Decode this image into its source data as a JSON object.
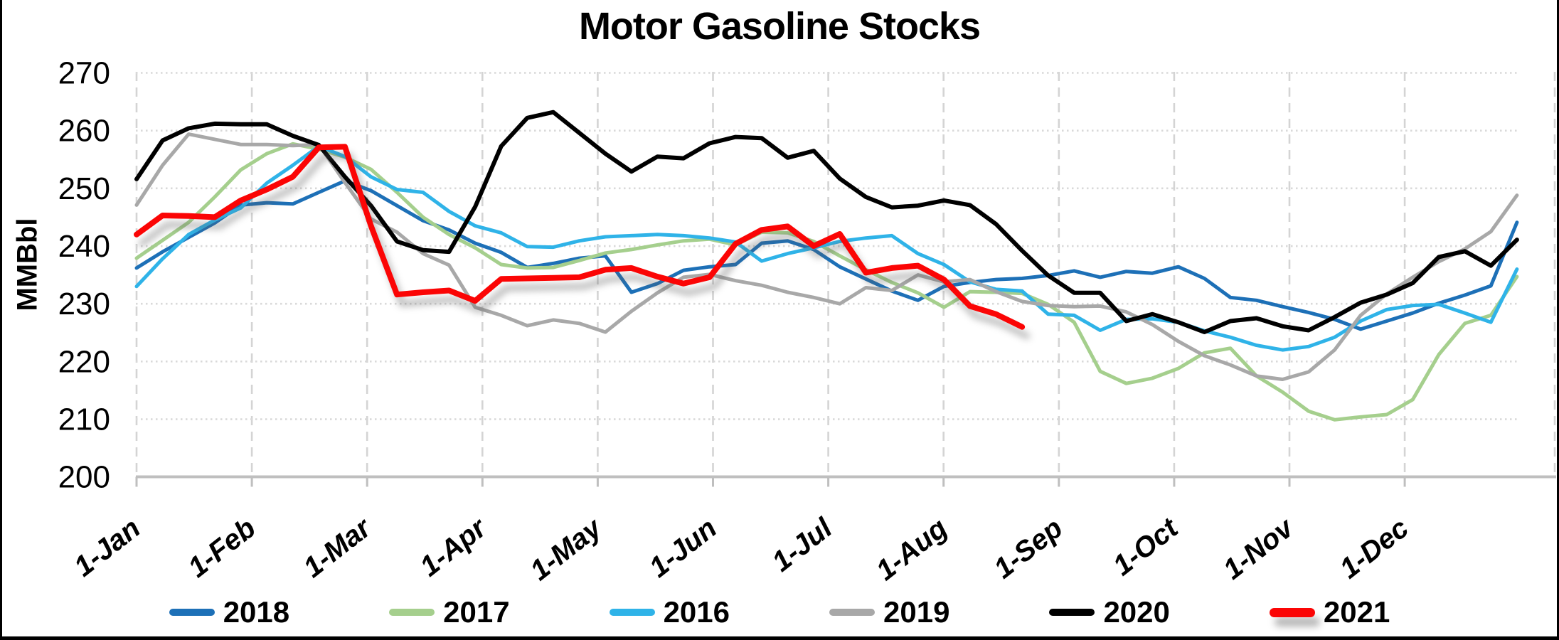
{
  "title": "Motor Gasoline Stocks",
  "chart_data": {
    "type": "line",
    "title": "Motor Gasoline Stocks",
    "xlabel": "",
    "ylabel": "MMBbl",
    "ylim": [
      200,
      270
    ],
    "y_ticks": [
      200,
      210,
      220,
      230,
      240,
      250,
      260,
      270
    ],
    "x_tick_labels": [
      "1-Jan",
      "1-Feb",
      "1-Mar",
      "1-Apr",
      "1-May",
      "1-Jun",
      "1-Jul",
      "1-Aug",
      "1-Sep",
      "1-Oct",
      "1-Nov",
      "1-Dec"
    ],
    "x_unit": "weekly data points, one point per week starting 1-Jan",
    "grid": "both",
    "legend_position": "bottom",
    "series": [
      {
        "name": "2018",
        "color": "#1D70B7",
        "line_width": 5,
        "shadow": false,
        "values": [
          236.2,
          239.0,
          241.5,
          244.0,
          247.1,
          247.5,
          247.3,
          249.3,
          251.3,
          249.6,
          247.0,
          244.4,
          242.8,
          240.5,
          238.9,
          236.3,
          237.0,
          237.9,
          238.3,
          232.0,
          233.5,
          235.8,
          236.4,
          236.8,
          240.5,
          240.9,
          239.4,
          236.4,
          234.3,
          232.2,
          230.6,
          233.0,
          233.7,
          234.2,
          234.4,
          234.9,
          235.7,
          234.6,
          235.6,
          235.3,
          236.4,
          234.4,
          231.1,
          230.6,
          229.5,
          228.5,
          227.3,
          225.6,
          227.0,
          228.4,
          230.1,
          231.5,
          233.1,
          244.1
        ]
      },
      {
        "name": "2017",
        "color": "#A5CF8D",
        "line_width": 5,
        "shadow": false,
        "values": [
          237.9,
          241.0,
          244.1,
          248.5,
          253.2,
          256.0,
          257.7,
          256.8,
          255.4,
          253.3,
          249.3,
          245.0,
          242.0,
          239.7,
          236.8,
          236.2,
          236.3,
          237.5,
          238.8,
          239.4,
          240.2,
          240.9,
          241.2,
          240.2,
          242.4,
          242.3,
          240.8,
          238.3,
          235.9,
          233.7,
          231.9,
          229.4,
          232.1,
          232.0,
          231.8,
          229.9,
          226.8,
          218.3,
          216.2,
          217.1,
          218.8,
          221.5,
          222.3,
          217.5,
          214.7,
          211.4,
          209.9,
          210.4,
          210.8,
          213.4,
          221.2,
          226.6,
          228.0,
          234.7
        ]
      },
      {
        "name": "2016",
        "color": "#2FB3E8",
        "line_width": 5,
        "shadow": false,
        "values": [
          233.0,
          237.8,
          242.0,
          244.5,
          246.6,
          250.9,
          254.0,
          257.3,
          255.5,
          252.0,
          249.8,
          249.3,
          246.0,
          243.5,
          242.3,
          239.9,
          239.8,
          240.9,
          241.6,
          241.8,
          242.0,
          241.8,
          241.4,
          240.7,
          237.4,
          238.7,
          239.7,
          240.8,
          241.4,
          241.8,
          238.7,
          236.8,
          233.8,
          232.5,
          232.2,
          228.2,
          228.0,
          225.4,
          227.3,
          227.4,
          226.8,
          225.3,
          224.2,
          222.8,
          222.0,
          222.6,
          224.2,
          227.0,
          229.0,
          229.7,
          229.9,
          228.4,
          226.8,
          236.0
        ]
      },
      {
        "name": "2019",
        "color": "#A8A8A8",
        "line_width": 5,
        "shadow": false,
        "values": [
          247.1,
          254.0,
          259.4,
          258.5,
          257.6,
          257.6,
          257.4,
          257.6,
          251.0,
          244.7,
          242.4,
          238.7,
          236.7,
          229.4,
          228.0,
          226.2,
          227.2,
          226.6,
          225.1,
          228.7,
          231.9,
          234.6,
          235.1,
          234.0,
          233.2,
          232.0,
          231.1,
          230.0,
          232.8,
          232.3,
          235.0,
          233.8,
          234.2,
          232.1,
          230.4,
          229.7,
          229.5,
          229.6,
          228.6,
          226.4,
          223.5,
          221.0,
          219.4,
          217.5,
          216.9,
          218.2,
          222.0,
          228.0,
          231.7,
          234.6,
          237.3,
          239.5,
          242.5,
          248.8
        ]
      },
      {
        "name": "2020",
        "color": "#000000",
        "line_width": 6,
        "shadow": false,
        "values": [
          251.6,
          258.3,
          260.4,
          261.2,
          261.1,
          261.1,
          259.1,
          257.5,
          252.0,
          247.0,
          240.8,
          239.3,
          239.0,
          246.8,
          257.3,
          262.2,
          263.2,
          259.6,
          256.0,
          252.9,
          255.5,
          255.2,
          257.8,
          258.9,
          258.7,
          255.3,
          256.5,
          251.7,
          248.5,
          246.7,
          247.0,
          247.9,
          247.1,
          243.8,
          239.2,
          234.9,
          231.9,
          231.9,
          227.0,
          228.2,
          226.8,
          225.1,
          227.0,
          227.5,
          226.1,
          225.4,
          227.7,
          230.2,
          231.6,
          233.6,
          238.1,
          239.1,
          236.6,
          241.1
        ]
      },
      {
        "name": "2021",
        "color": "#FB0505",
        "line_width": 8,
        "shadow": true,
        "values": [
          242.0,
          245.3,
          245.2,
          245.0,
          247.9,
          249.8,
          252.0,
          257.1,
          257.2,
          243.5,
          231.6,
          232.0,
          232.3,
          230.5,
          234.3,
          234.4,
          234.5,
          234.6,
          235.9,
          236.2,
          234.7,
          233.5,
          234.6,
          240.4,
          242.8,
          243.4,
          240.0,
          242.1,
          235.4,
          236.2,
          236.6,
          234.2,
          229.6,
          228.2,
          226.0
        ]
      }
    ]
  }
}
